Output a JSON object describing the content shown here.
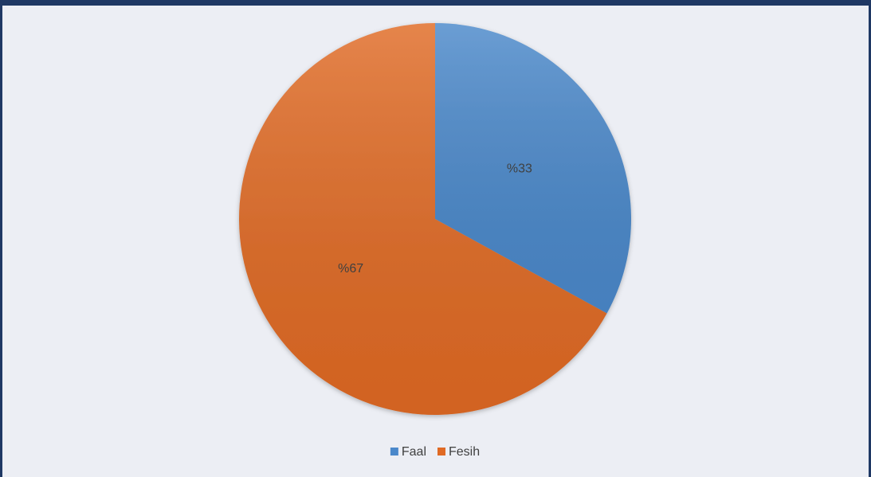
{
  "chart_data": {
    "type": "pie",
    "categories": [
      "Faal",
      "Fesih"
    ],
    "values": [
      33,
      67
    ],
    "value_labels": [
      "%33",
      "%67"
    ],
    "colors": [
      "#4a88ca",
      "#e06a24"
    ],
    "legend": "bottom"
  }
}
